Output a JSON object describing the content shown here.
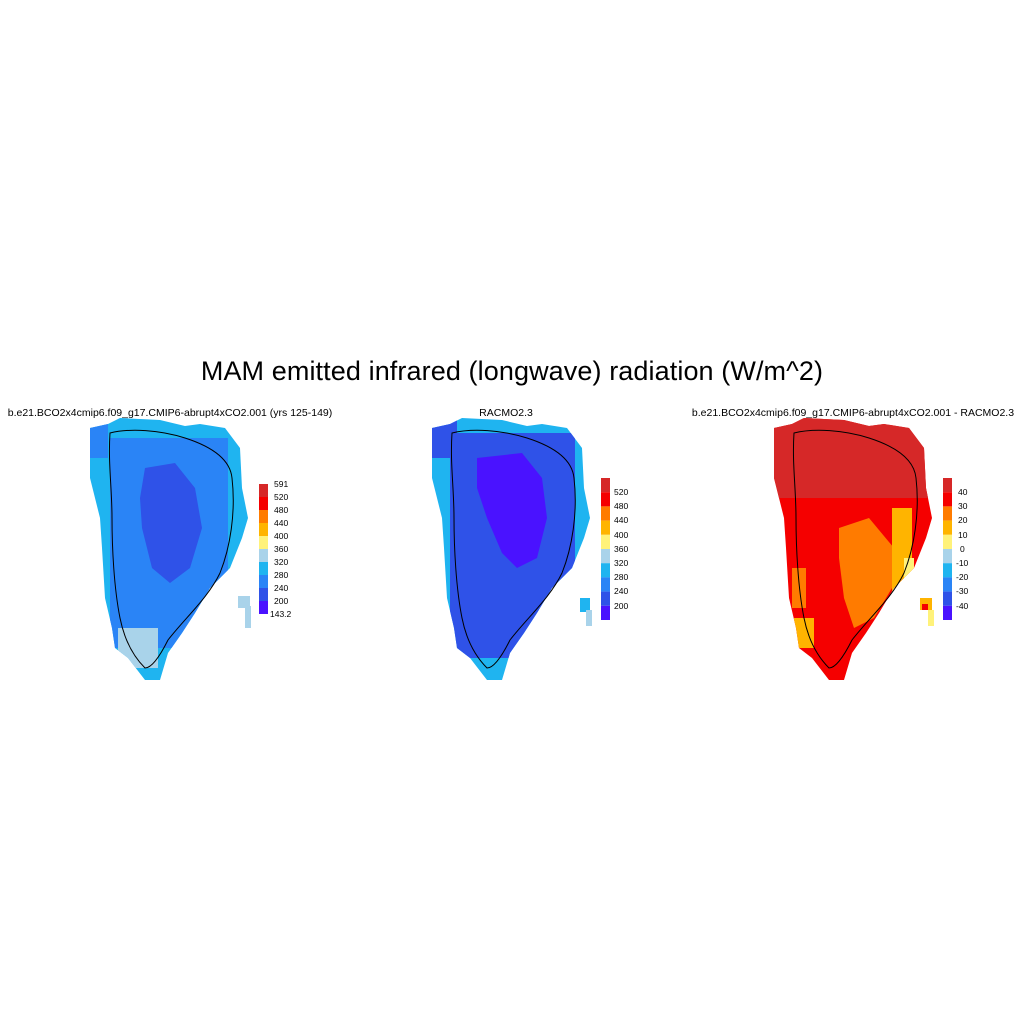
{
  "figure": {
    "title": "MAM emitted infrared (longwave) radiation (W/m^2)"
  },
  "panels": [
    {
      "title": "b.e21.BCO2x4cmip6.f09_g17.CMIP6-abrupt4xCO2.001 (yrs 125-149)",
      "colorbar": {
        "labels": [
          "591",
          "520",
          "480",
          "440",
          "400",
          "360",
          "320",
          "280",
          "240",
          "200",
          "143.2"
        ],
        "colors": [
          "#d62828",
          "#f50000",
          "#ff7b00",
          "#ffb400",
          "#fff27a",
          "#a9d3ea",
          "#1fb4f0",
          "#2a84f6",
          "#2f52e8",
          "#4a12ff"
        ]
      }
    },
    {
      "title": "RACMO2.3",
      "colorbar": {
        "labels": [
          "520",
          "480",
          "440",
          "400",
          "360",
          "320",
          "280",
          "240",
          "200"
        ],
        "colors": [
          "#d62828",
          "#f50000",
          "#ff7b00",
          "#ffb400",
          "#fff27a",
          "#a9d3ea",
          "#1fb4f0",
          "#2a84f6",
          "#2f52e8",
          "#4a12ff"
        ]
      }
    },
    {
      "title": "b.e21.BCO2x4cmip6.f09_g17.CMIP6-abrupt4xCO2.001 - RACMO2.3",
      "colorbar": {
        "labels": [
          "40",
          "30",
          "20",
          "10",
          "0",
          "-10",
          "-20",
          "-30",
          "-40"
        ],
        "colors": [
          "#d62828",
          "#f50000",
          "#ff7b00",
          "#ffb400",
          "#fff27a",
          "#a9d3ea",
          "#1fb4f0",
          "#2a84f6",
          "#2f52e8",
          "#4a12ff"
        ]
      }
    }
  ]
}
